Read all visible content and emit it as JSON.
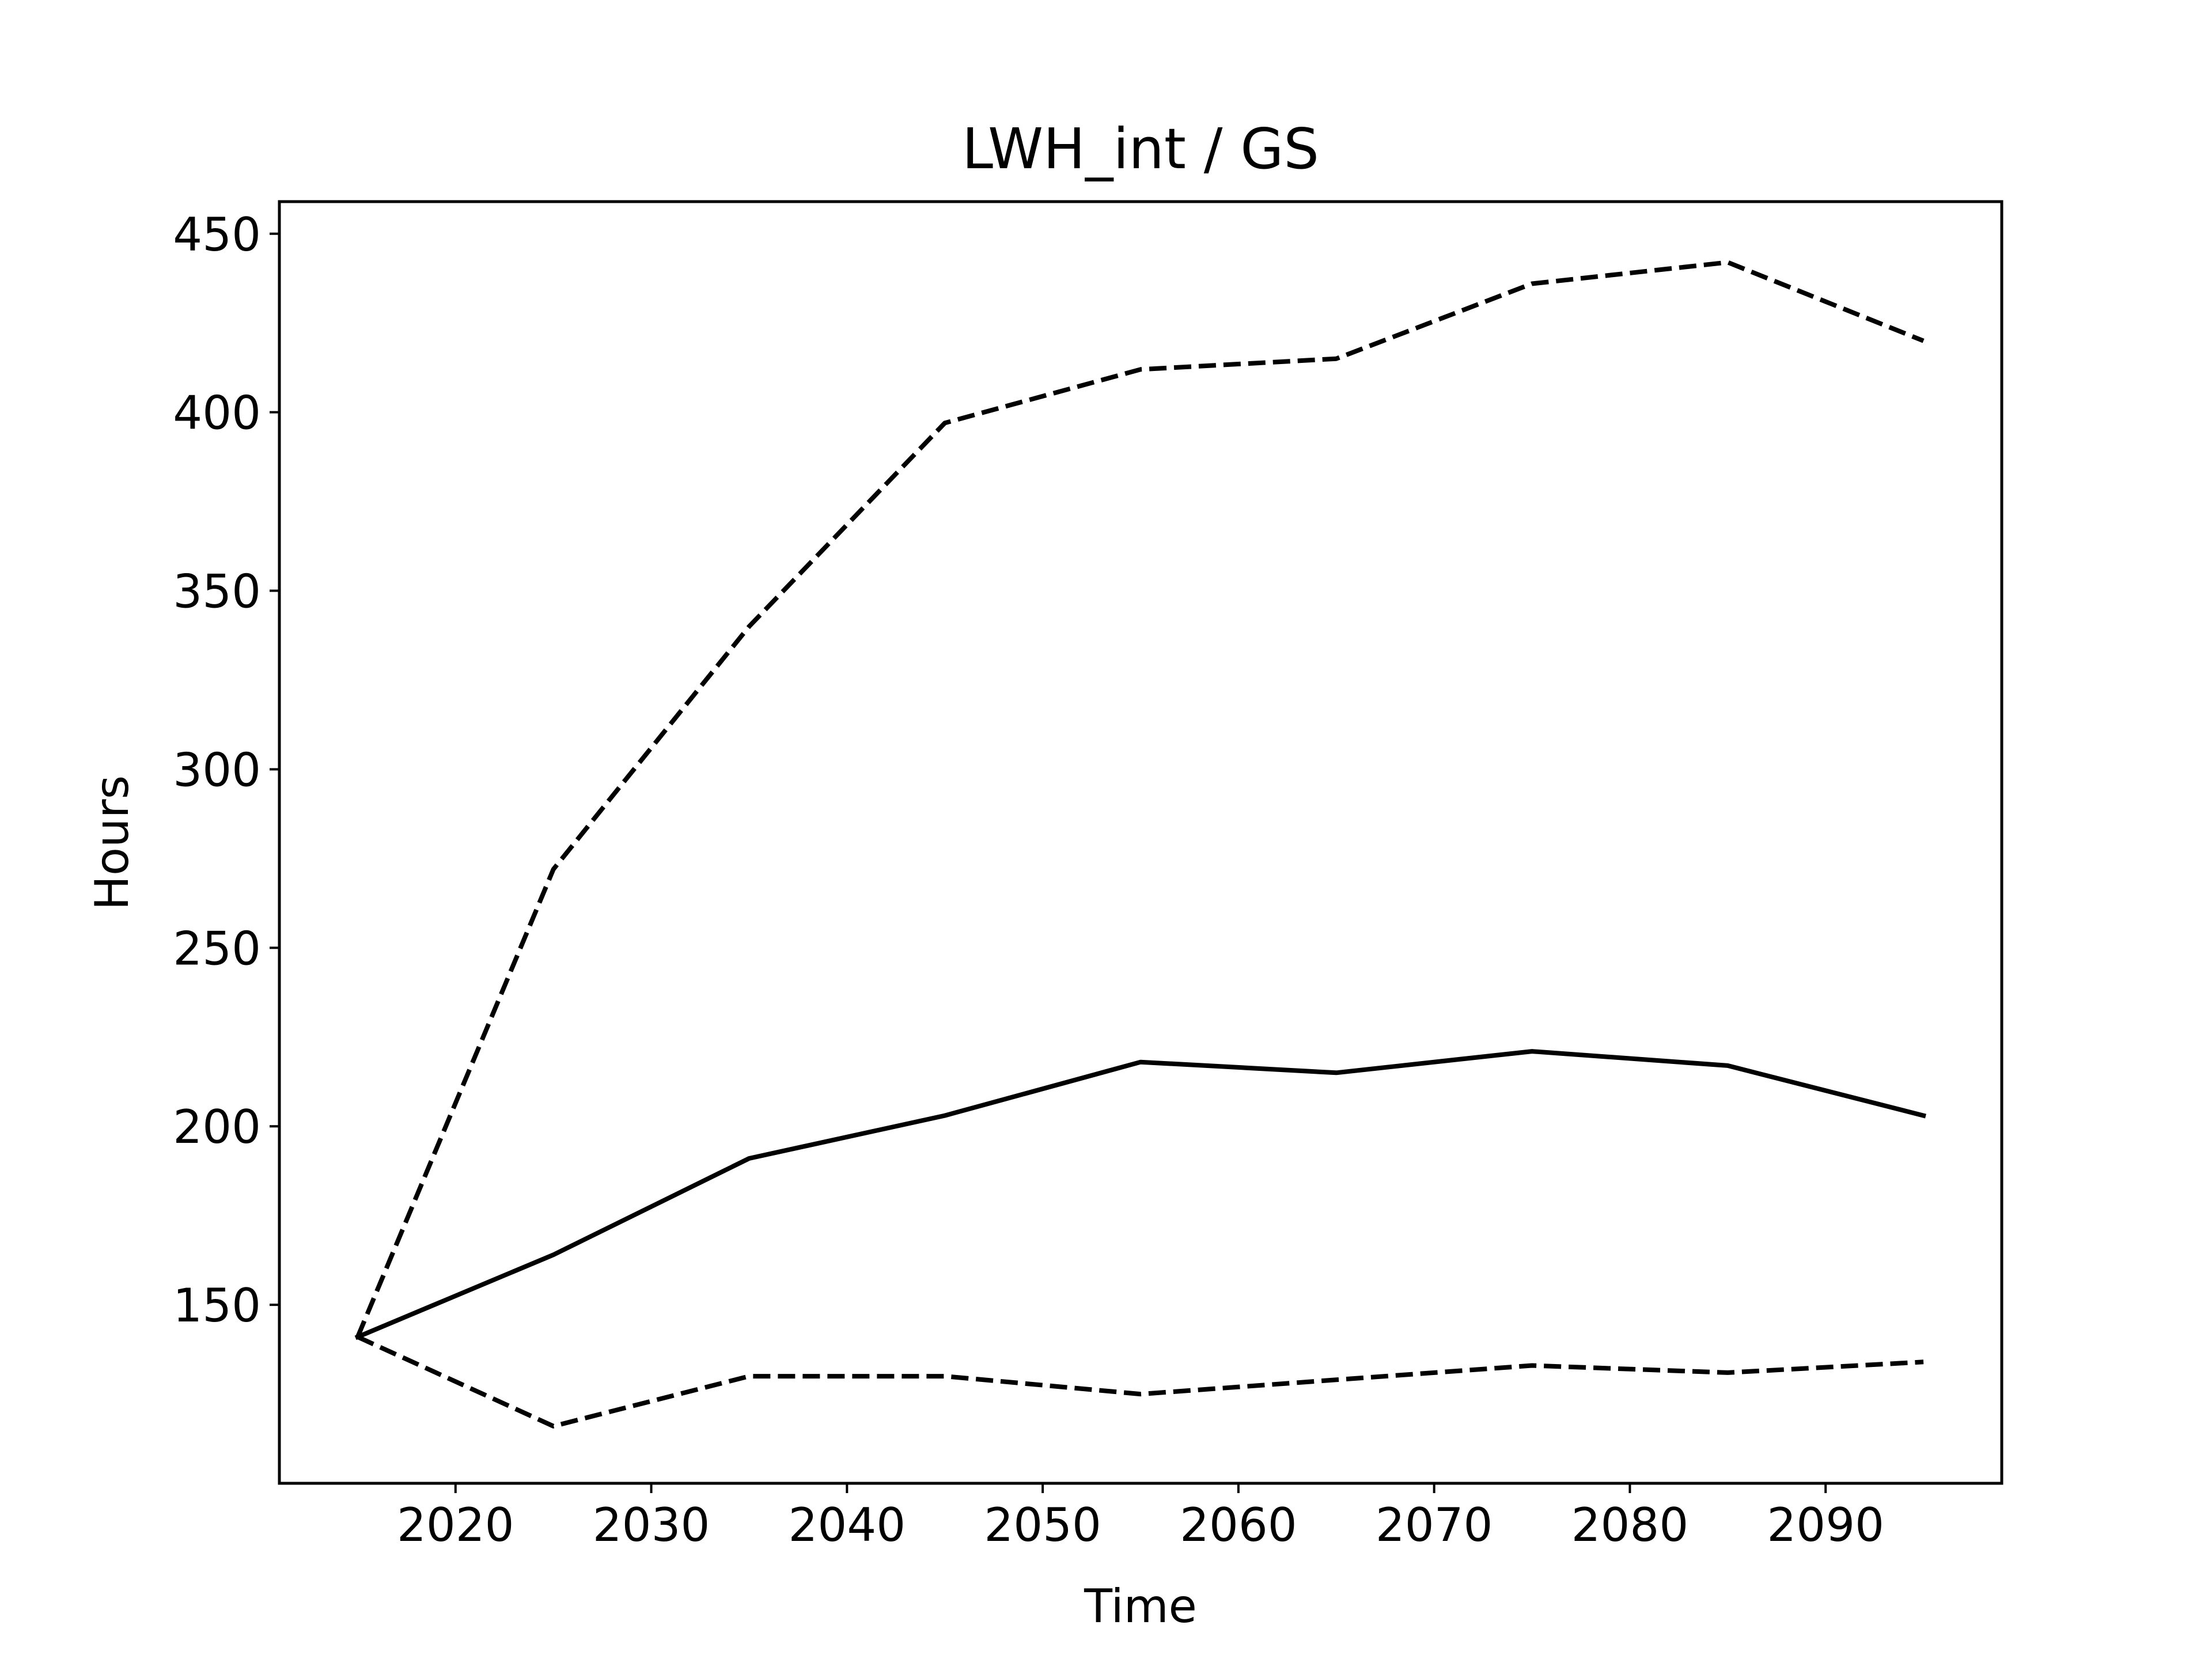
{
  "chart_data": {
    "type": "line",
    "title": "LWH_int / GS",
    "xlabel": "Time",
    "ylabel": "Hours",
    "x": [
      2015,
      2025,
      2035,
      2045,
      2055,
      2065,
      2075,
      2085,
      2095
    ],
    "xlim": [
      2011,
      2099
    ],
    "ylim": [
      100,
      459
    ],
    "xticks": [
      2020,
      2030,
      2040,
      2050,
      2060,
      2070,
      2080,
      2090
    ],
    "yticks": [
      150,
      200,
      250,
      300,
      350,
      400,
      450
    ],
    "grid": false,
    "series": [
      {
        "style": "dashed",
        "color": "#000000",
        "values": [
          141,
          272,
          340,
          397,
          412,
          415,
          436,
          442,
          420
        ]
      },
      {
        "style": "solid",
        "color": "#000000",
        "values": [
          141,
          164,
          191,
          203,
          218,
          215,
          221,
          217,
          203
        ]
      },
      {
        "style": "dashed",
        "color": "#000000",
        "values": [
          141,
          116,
          130,
          130,
          125,
          129,
          133,
          131,
          134
        ]
      }
    ]
  }
}
